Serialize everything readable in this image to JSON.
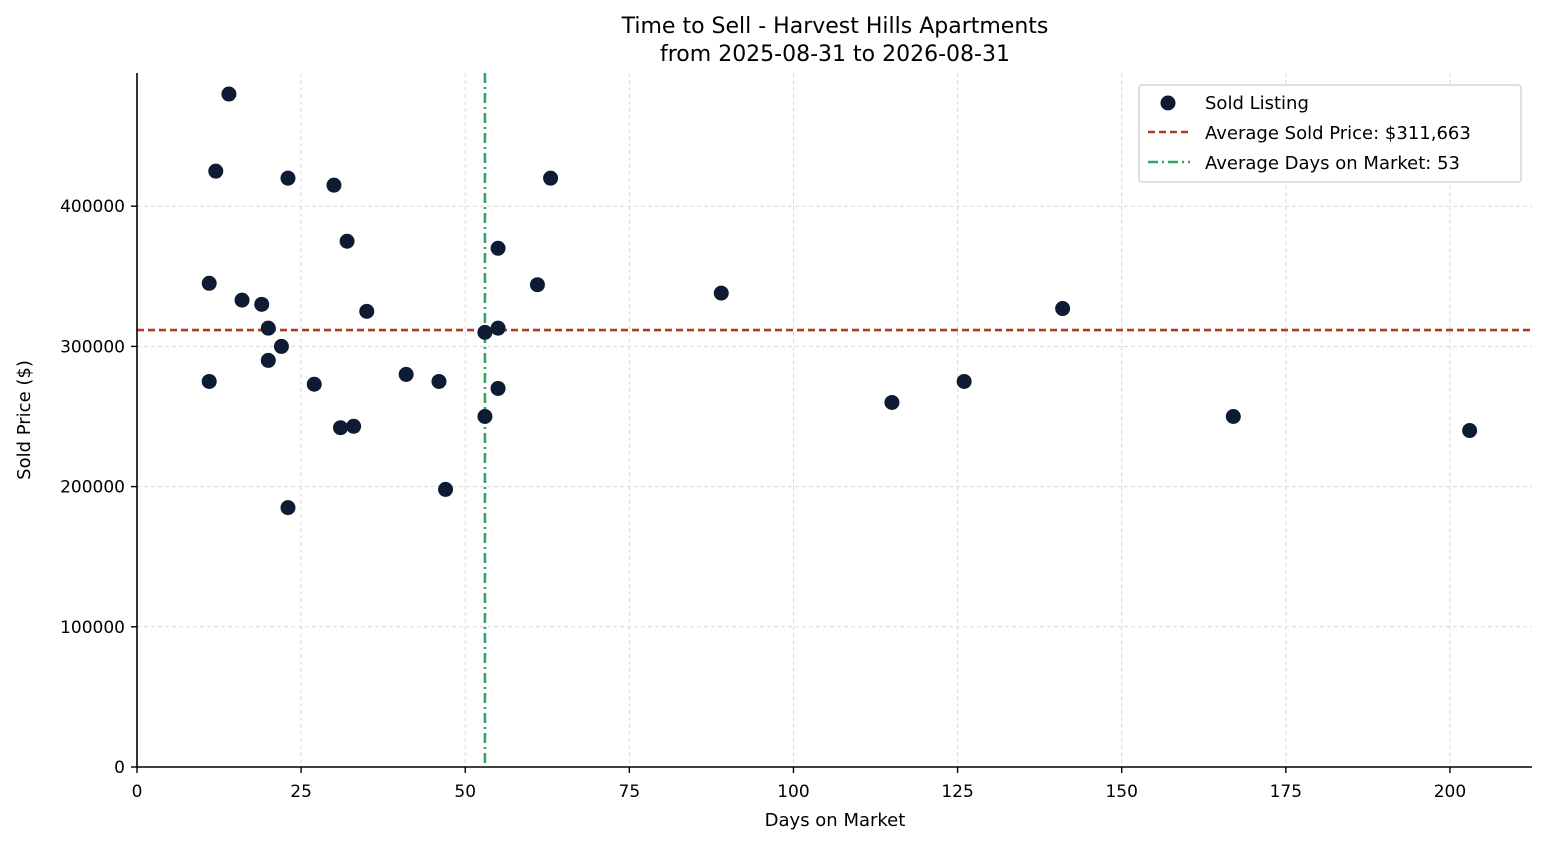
{
  "chart_data": {
    "type": "scatter",
    "title": "Time to Sell - Harvest Hills Apartments",
    "subtitle": "from 2025-08-31 to 2026-08-31",
    "xlabel": "Days on Market",
    "ylabel": "Sold Price ($)",
    "xlim": [
      0,
      212.5
    ],
    "ylim": [
      0,
      495000
    ],
    "xticks": [
      0,
      25,
      50,
      75,
      100,
      125,
      150,
      175,
      200
    ],
    "yticks": [
      0,
      100000,
      200000,
      300000,
      400000
    ],
    "grid": true,
    "legend_position": "top-right",
    "series": [
      {
        "name": "Sold Listing",
        "color": "#0d1b33",
        "points": [
          {
            "x": 14,
            "y": 480000
          },
          {
            "x": 12,
            "y": 425000
          },
          {
            "x": 23,
            "y": 420000
          },
          {
            "x": 30,
            "y": 415000
          },
          {
            "x": 63,
            "y": 420000
          },
          {
            "x": 32,
            "y": 375000
          },
          {
            "x": 55,
            "y": 370000
          },
          {
            "x": 11,
            "y": 345000
          },
          {
            "x": 61,
            "y": 344000
          },
          {
            "x": 16,
            "y": 333000
          },
          {
            "x": 19,
            "y": 330000
          },
          {
            "x": 35,
            "y": 325000
          },
          {
            "x": 20,
            "y": 313000
          },
          {
            "x": 53,
            "y": 310000
          },
          {
            "x": 55,
            "y": 313000
          },
          {
            "x": 22,
            "y": 300000
          },
          {
            "x": 20,
            "y": 290000
          },
          {
            "x": 11,
            "y": 275000
          },
          {
            "x": 27,
            "y": 273000
          },
          {
            "x": 41,
            "y": 280000
          },
          {
            "x": 46,
            "y": 275000
          },
          {
            "x": 55,
            "y": 270000
          },
          {
            "x": 53,
            "y": 250000
          },
          {
            "x": 31,
            "y": 242000
          },
          {
            "x": 33,
            "y": 243000
          },
          {
            "x": 47,
            "y": 198000
          },
          {
            "x": 23,
            "y": 185000
          },
          {
            "x": 89,
            "y": 338000
          },
          {
            "x": 141,
            "y": 327000
          },
          {
            "x": 115,
            "y": 260000
          },
          {
            "x": 126,
            "y": 275000
          },
          {
            "x": 167,
            "y": 250000
          },
          {
            "x": 203,
            "y": 240000
          }
        ]
      }
    ],
    "reference_lines": [
      {
        "orientation": "horizontal",
        "value": 311663,
        "color": "#b53a24",
        "style": "dashed",
        "label": "Average Sold Price: $311,663"
      },
      {
        "orientation": "vertical",
        "value": 53,
        "color": "#2ea661",
        "style": "dashdot",
        "label": "Average Days on Market: 53"
      }
    ]
  }
}
